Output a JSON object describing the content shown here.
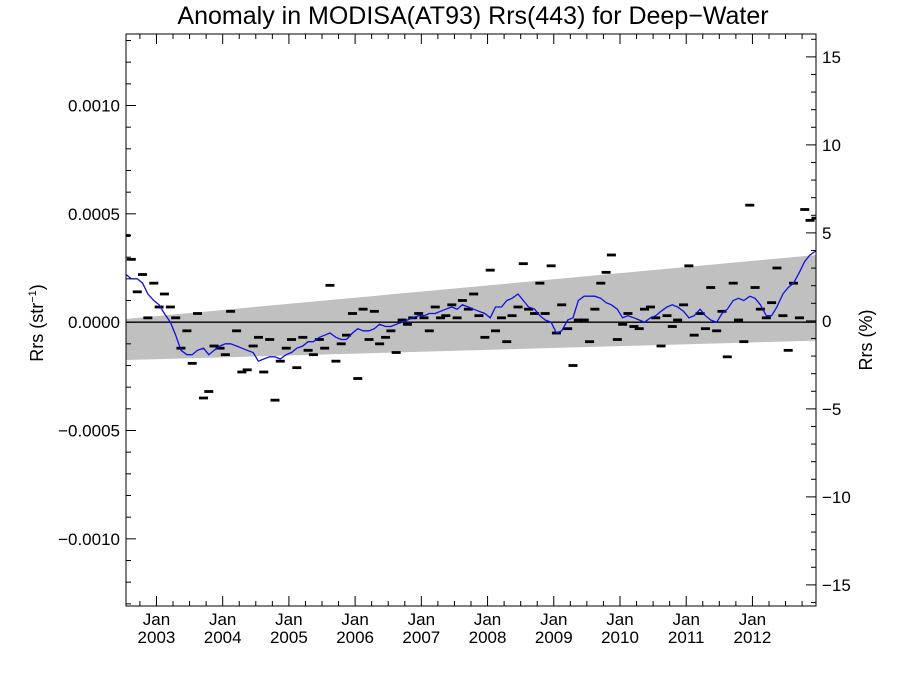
{
  "chart_data": {
    "type": "scatter",
    "title": "Anomaly in MODISA(AT93) Rrs(443) for Deep−Water",
    "ylabel_left": "Rrs (str",
    "ylabel_left_sup": "−1",
    "ylabel_left_close": ")",
    "ylabel_right": "Rrs (%)",
    "xlim": [
      2002.54,
      2012.96
    ],
    "ylim": [
      -0.00131,
      0.00133
    ],
    "ylim_right": [
      -16.2,
      16.3
    ],
    "left_ticks": [
      {
        "value": 0.001,
        "label": "0.0010"
      },
      {
        "value": 0.0005,
        "label": "0.0005"
      },
      {
        "value": 0.0,
        "label": "0.0000"
      },
      {
        "value": -0.0005,
        "label": "−0.0005"
      },
      {
        "value": -0.001,
        "label": "−0.0010"
      }
    ],
    "right_ticks": [
      {
        "value": 15,
        "label": "15"
      },
      {
        "value": 10,
        "label": "10"
      },
      {
        "value": 5,
        "label": "5"
      },
      {
        "value": 0,
        "label": "0"
      },
      {
        "value": -5,
        "label": "−5"
      },
      {
        "value": -10,
        "label": "−10"
      },
      {
        "value": -15,
        "label": "−15"
      }
    ],
    "x_ticks": [
      {
        "value": 2003.0,
        "month": "Jan",
        "year": "2003"
      },
      {
        "value": 2004.0,
        "month": "Jan",
        "year": "2004"
      },
      {
        "value": 2005.0,
        "month": "Jan",
        "year": "2005"
      },
      {
        "value": 2006.0,
        "month": "Jan",
        "year": "2006"
      },
      {
        "value": 2007.0,
        "month": "Jan",
        "year": "2007"
      },
      {
        "value": 2008.0,
        "month": "Jan",
        "year": "2008"
      },
      {
        "value": 2009.0,
        "month": "Jan",
        "year": "2009"
      },
      {
        "value": 2010.0,
        "month": "Jan",
        "year": "2010"
      },
      {
        "value": 2011.0,
        "month": "Jan",
        "year": "2011"
      },
      {
        "value": 2012.0,
        "month": "Jan",
        "year": "2012"
      }
    ],
    "zero_line": 0.0,
    "trend_band": {
      "x": [
        2002.54,
        2012.96
      ],
      "upper": [
        1.5e-05,
        0.00031
      ],
      "lower": [
        -0.000175,
        -8.5e-05
      ]
    },
    "monthly_anomalies": {
      "marker": "dash",
      "color": "#000000",
      "x": [
        2002.54,
        2002.62,
        2002.71,
        2002.79,
        2002.87,
        2002.96,
        2003.04,
        2003.12,
        2003.21,
        2003.29,
        2003.37,
        2003.46,
        2003.54,
        2003.62,
        2003.71,
        2003.79,
        2003.87,
        2003.96,
        2004.04,
        2004.12,
        2004.21,
        2004.29,
        2004.37,
        2004.46,
        2004.54,
        2004.62,
        2004.71,
        2004.79,
        2004.87,
        2004.96,
        2005.04,
        2005.12,
        2005.21,
        2005.29,
        2005.37,
        2005.46,
        2005.54,
        2005.62,
        2005.71,
        2005.79,
        2005.87,
        2005.96,
        2006.04,
        2006.12,
        2006.21,
        2006.29,
        2006.37,
        2006.46,
        2006.54,
        2006.62,
        2006.71,
        2006.79,
        2006.87,
        2006.96,
        2007.04,
        2007.12,
        2007.21,
        2007.29,
        2007.37,
        2007.46,
        2007.54,
        2007.62,
        2007.71,
        2007.79,
        2007.87,
        2007.96,
        2008.04,
        2008.12,
        2008.21,
        2008.29,
        2008.37,
        2008.46,
        2008.54,
        2008.62,
        2008.71,
        2008.79,
        2008.87,
        2008.96,
        2009.04,
        2009.12,
        2009.21,
        2009.29,
        2009.37,
        2009.46,
        2009.54,
        2009.62,
        2009.71,
        2009.79,
        2009.87,
        2009.96,
        2010.04,
        2010.12,
        2010.21,
        2010.29,
        2010.37,
        2010.46,
        2010.54,
        2010.62,
        2010.71,
        2010.79,
        2010.87,
        2010.96,
        2011.04,
        2011.12,
        2011.21,
        2011.29,
        2011.37,
        2011.46,
        2011.54,
        2011.62,
        2011.71,
        2011.79,
        2011.87,
        2011.96,
        2012.04,
        2012.12,
        2012.21,
        2012.29,
        2012.37,
        2012.46,
        2012.54,
        2012.62,
        2012.71,
        2012.79,
        2012.87,
        2012.96
      ],
      "y": [
        0.0004,
        0.00029,
        0.00014,
        0.00022,
        2e-05,
        0.00018,
        7e-05,
        0.00013,
        7e-05,
        2e-05,
        -0.00012,
        -4e-05,
        -0.00019,
        4e-05,
        -0.00035,
        -0.00032,
        -0.00011,
        -0.00012,
        -0.00015,
        5e-05,
        -4e-05,
        -0.00023,
        -0.00022,
        -0.00011,
        -7e-05,
        -0.00023,
        -8e-05,
        -0.00036,
        -0.00018,
        -0.00012,
        -8e-05,
        -0.00021,
        -7e-05,
        -0.00013,
        -0.00015,
        -8e-05,
        -0.00012,
        0.00017,
        -0.00018,
        -0.0001,
        -6e-05,
        4e-05,
        -0.00026,
        6e-05,
        -8e-05,
        5e-05,
        -0.0001,
        -7e-05,
        -4e-05,
        -0.00014,
        1e-05,
        -1e-05,
        2e-05,
        4e-05,
        2e-05,
        -4e-05,
        7e-05,
        2e-05,
        3e-05,
        8e-05,
        2e-05,
        0.0001,
        6e-05,
        0.00013,
        3e-05,
        -7e-05,
        0.00024,
        -4e-05,
        2e-05,
        -9e-05,
        3e-05,
        7e-05,
        0.00027,
        6e-05,
        4e-05,
        0.00018,
        4e-05,
        0.00026,
        -5e-05,
        8e-05,
        -3e-05,
        -0.0002,
        1e-05,
        1e-05,
        -9e-05,
        6e-05,
        0.00018,
        0.00023,
        0.00031,
        -8e-05,
        -1e-05,
        4e-05,
        -2e-05,
        -3e-05,
        6e-05,
        7e-05,
        2e-05,
        -0.00011,
        3e-05,
        -2e-05,
        1e-05,
        8e-05,
        0.00026,
        -6e-05,
        4e-05,
        -3e-05,
        0.00016,
        -4e-05,
        5e-05,
        -0.00016,
        0.00018,
        1e-05,
        -9e-05,
        0.00054,
        0.00016,
        6e-05,
        2e-05,
        9e-05,
        0.00025,
        3e-05,
        -0.00013,
        0.00018,
        2e-05,
        0.00052,
        0.00047,
        0.00048
      ]
    },
    "smoothed_line": {
      "color": "#1010e0",
      "x": [
        2002.54,
        2002.62,
        2002.71,
        2002.79,
        2002.87,
        2002.96,
        2003.04,
        2003.12,
        2003.21,
        2003.29,
        2003.37,
        2003.46,
        2003.54,
        2003.62,
        2003.71,
        2003.79,
        2003.87,
        2003.96,
        2004.04,
        2004.12,
        2004.21,
        2004.29,
        2004.37,
        2004.46,
        2004.54,
        2004.62,
        2004.71,
        2004.79,
        2004.87,
        2004.96,
        2005.04,
        2005.12,
        2005.21,
        2005.29,
        2005.37,
        2005.46,
        2005.54,
        2005.62,
        2005.71,
        2005.79,
        2005.87,
        2005.96,
        2006.04,
        2006.12,
        2006.21,
        2006.29,
        2006.37,
        2006.46,
        2006.54,
        2006.62,
        2006.71,
        2006.79,
        2006.87,
        2006.96,
        2007.04,
        2007.12,
        2007.21,
        2007.29,
        2007.37,
        2007.46,
        2007.54,
        2007.62,
        2007.71,
        2007.79,
        2007.87,
        2007.96,
        2008.04,
        2008.12,
        2008.21,
        2008.29,
        2008.37,
        2008.46,
        2008.54,
        2008.62,
        2008.71,
        2008.79,
        2008.87,
        2008.96,
        2009.04,
        2009.12,
        2009.21,
        2009.29,
        2009.37,
        2009.46,
        2009.54,
        2009.62,
        2009.71,
        2009.79,
        2009.87,
        2009.96,
        2010.04,
        2010.12,
        2010.21,
        2010.29,
        2010.37,
        2010.46,
        2010.54,
        2010.62,
        2010.71,
        2010.79,
        2010.87,
        2010.96,
        2011.04,
        2011.12,
        2011.21,
        2011.29,
        2011.37,
        2011.46,
        2011.54,
        2011.62,
        2011.71,
        2011.79,
        2011.87,
        2011.96,
        2012.04,
        2012.12,
        2012.21,
        2012.29,
        2012.37,
        2012.46,
        2012.54,
        2012.62,
        2012.71,
        2012.79,
        2012.87,
        2012.96
      ],
      "y": [
        0.00022,
        0.0002,
        0.0002,
        0.00018,
        0.00013,
        0.0001,
        8e-05,
        4e-05,
        0.0,
        -6e-05,
        -0.00013,
        -0.00015,
        -0.00015,
        -0.00013,
        -0.00012,
        -0.00015,
        -0.00013,
        -0.00011,
        -0.0001,
        -0.0001,
        -0.00011,
        -0.00012,
        -0.00013,
        -0.00014,
        -0.00018,
        -0.00017,
        -0.00016,
        -0.00016,
        -0.00017,
        -0.00015,
        -0.00014,
        -0.00012,
        -0.00011,
        -9e-05,
        -9e-05,
        -7e-05,
        -6e-05,
        -5e-05,
        -7e-05,
        -8e-05,
        -8e-05,
        -5e-05,
        -3e-05,
        -4e-05,
        -4e-05,
        -3e-05,
        -1e-05,
        -2e-05,
        -2e-05,
        -1e-05,
        0.0,
        1e-05,
        2e-05,
        3e-05,
        3e-05,
        4e-05,
        4e-05,
        5e-05,
        6e-05,
        7e-05,
        6e-05,
        8e-05,
        7e-05,
        6e-05,
        5e-05,
        4e-05,
        2e-05,
        7e-05,
        7e-05,
        0.0001,
        0.00011,
        0.00013,
        0.0001,
        7e-05,
        6e-05,
        3e-05,
        1e-05,
        0.0,
        -5e-05,
        -4e-05,
        1e-05,
        2e-05,
        0.0001,
        0.00012,
        0.00012,
        0.00012,
        0.00011,
        9e-05,
        8e-05,
        6e-05,
        2e-05,
        3e-05,
        2e-05,
        1e-05,
        0.0,
        2e-05,
        3e-05,
        5e-05,
        7e-05,
        8e-05,
        7e-05,
        5e-05,
        2e-05,
        3e-05,
        6e-05,
        3e-05,
        1e-05,
        0.0,
        4e-05,
        6e-05,
        0.0001,
        0.00011,
        0.0001,
        0.00012,
        0.00011,
        8e-05,
        3e-05,
        3e-05,
        7e-05,
        0.00013,
        0.00016,
        0.00018,
        0.00023,
        0.00028,
        0.00031,
        0.00033
      ]
    },
    "band_color": "#c0c0c0"
  }
}
